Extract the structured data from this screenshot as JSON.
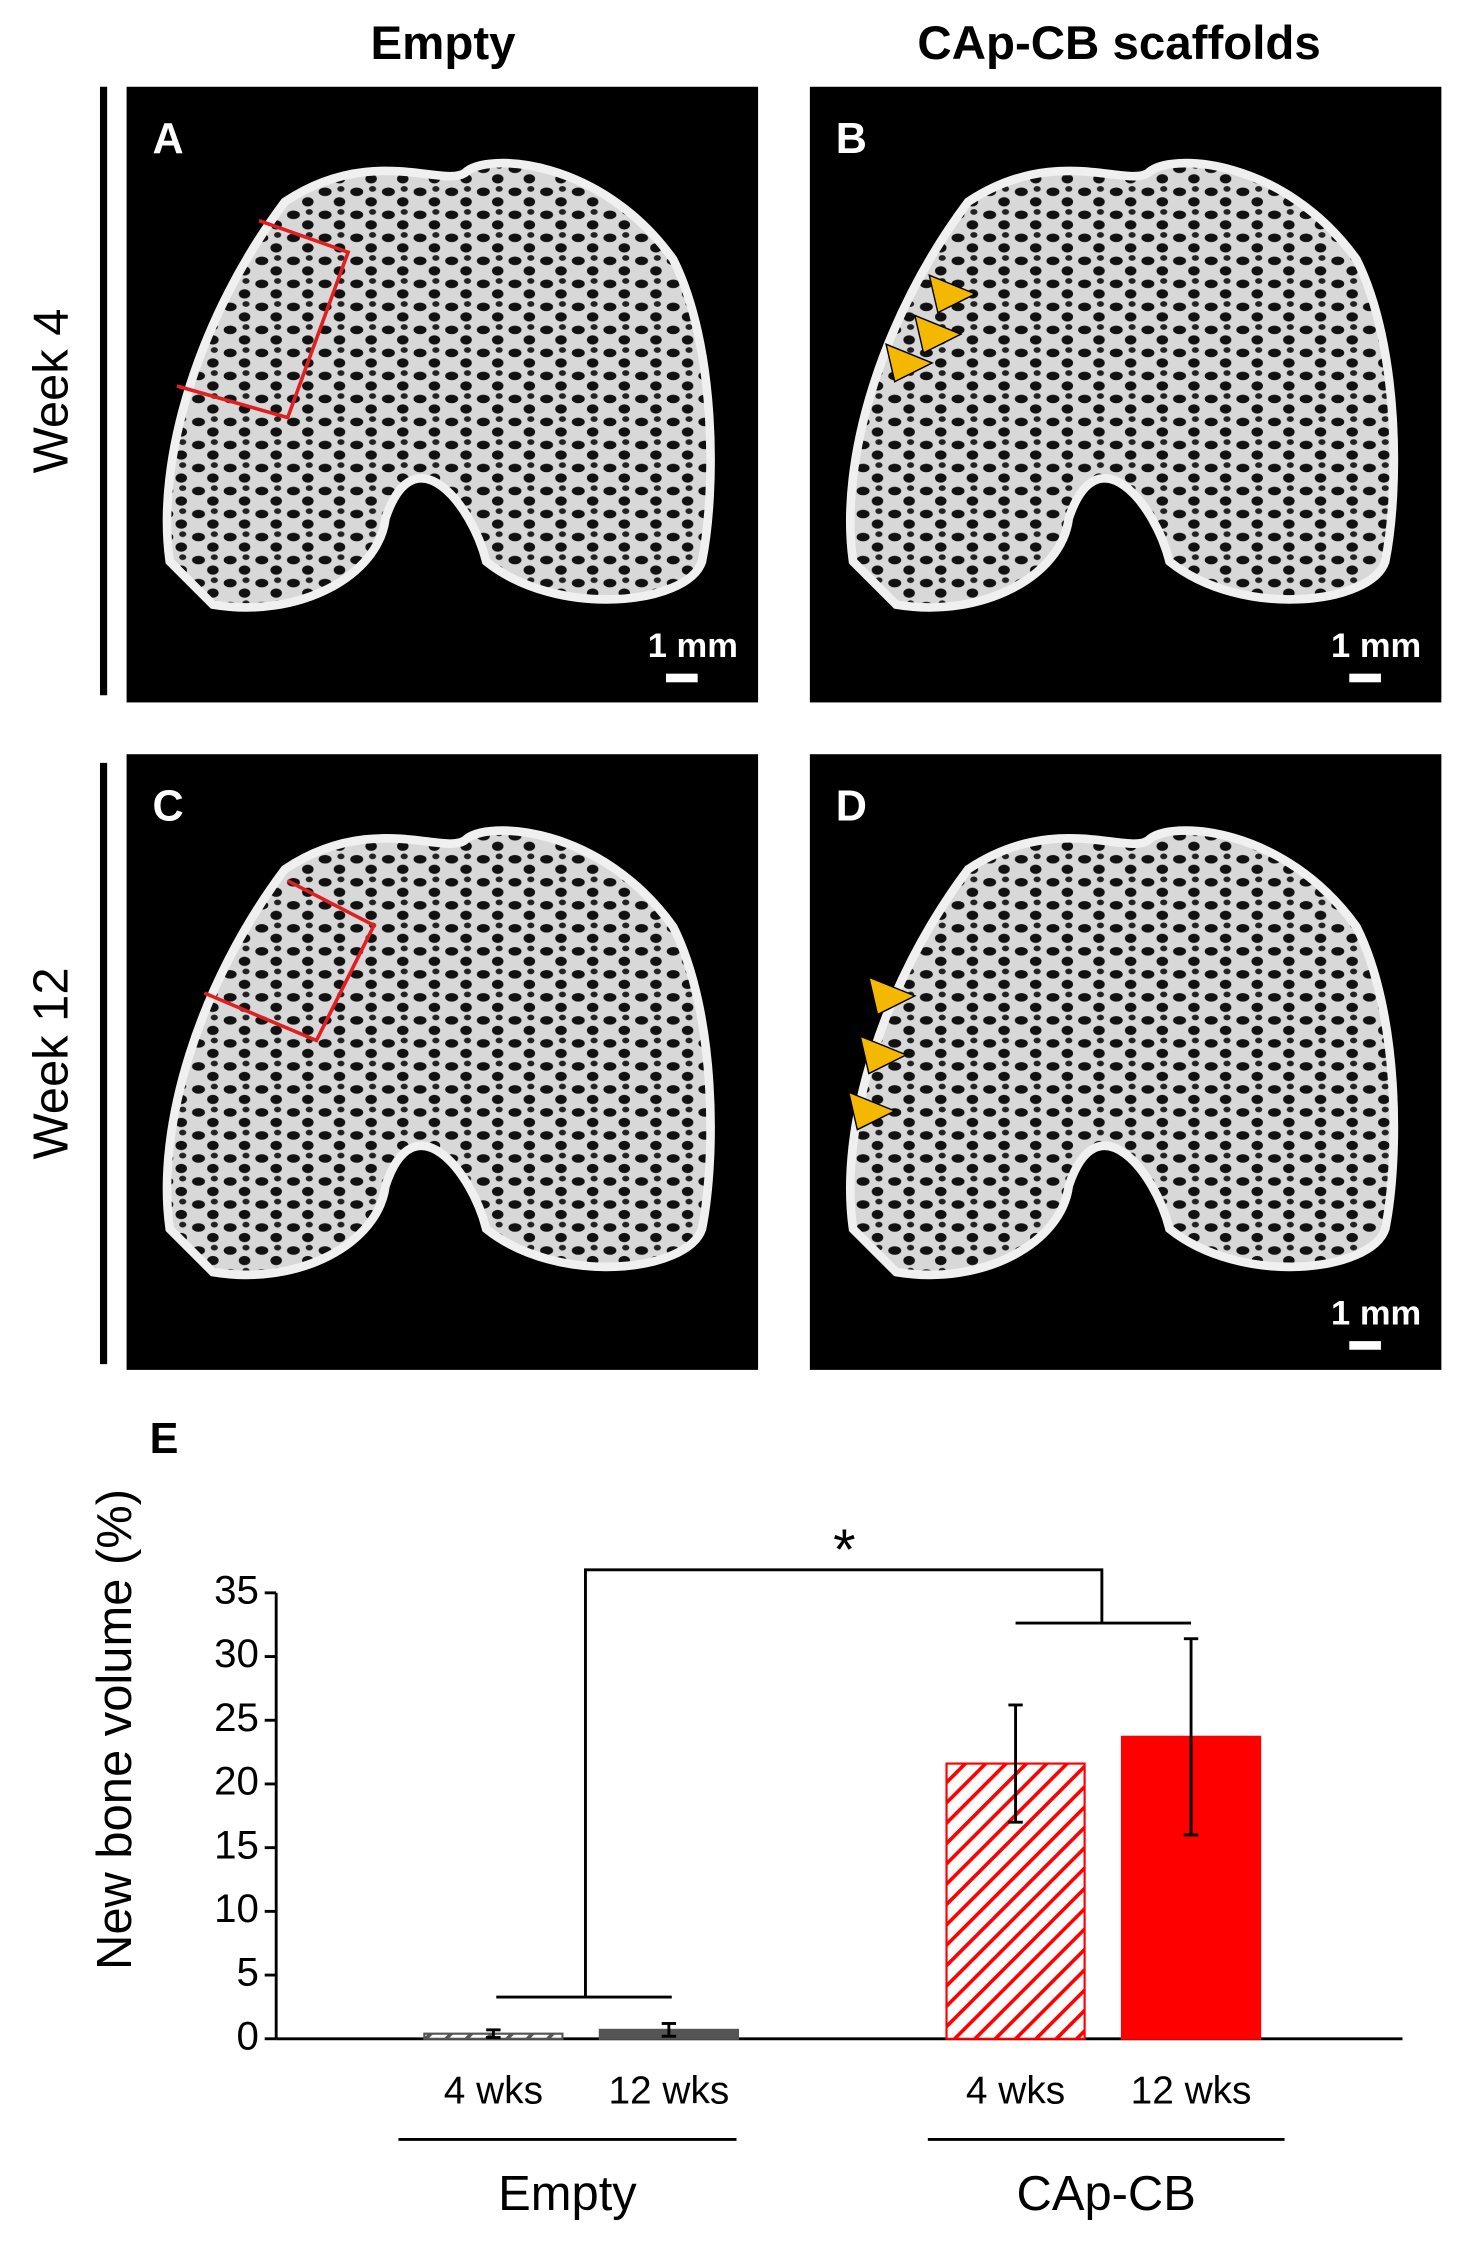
{
  "figure": {
    "column_titles": [
      "Empty",
      "CAp-CB scaffolds"
    ],
    "row_labels": [
      "Week 4",
      "Week 12"
    ],
    "panels": [
      {
        "label": "A",
        "scale": "1 mm"
      },
      {
        "label": "B",
        "scale": "1 mm"
      },
      {
        "label": "C"
      },
      {
        "label": "D",
        "scale": "1 mm"
      }
    ]
  },
  "chart_data": {
    "type": "bar",
    "panel_label": "E",
    "y_label": "New bone volume (%)",
    "categories": [
      "4 wks",
      "12 wks",
      "4 wks",
      "12 wks"
    ],
    "values": [
      0.4,
      0.7,
      21.6,
      23.7
    ],
    "errors": [
      0.3,
      0.5,
      4.6,
      7.7
    ],
    "colors": [
      "#555555",
      "#555555",
      "#ff0000",
      "#ff0000"
    ],
    "styles": [
      "hatched",
      "solid",
      "hatched",
      "solid"
    ],
    "groups": [
      "Empty",
      "CAp-CB"
    ],
    "significance": "*",
    "ylim": [
      0,
      35
    ],
    "yticks": [
      0,
      5,
      10,
      15,
      20,
      25,
      30,
      35
    ]
  }
}
